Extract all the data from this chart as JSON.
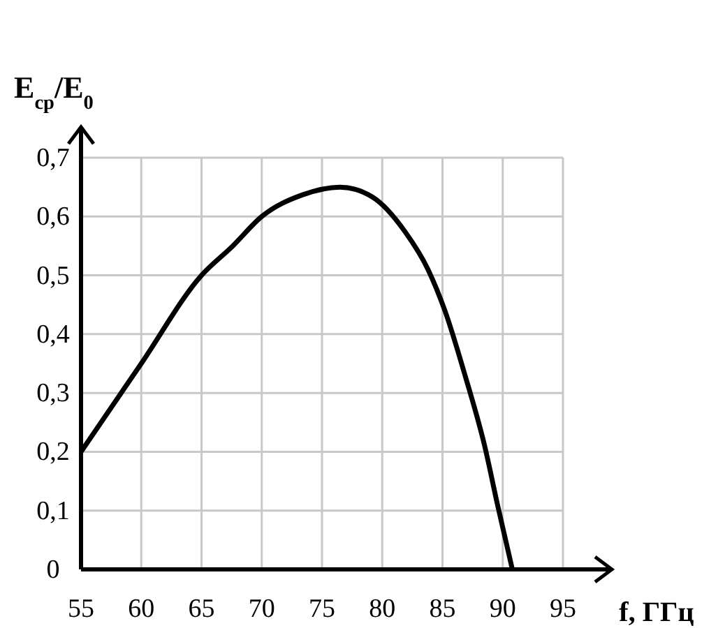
{
  "chart_data": {
    "type": "line",
    "xlabel": "f, ГГц",
    "ylabel": "E$_{ср}$/E$_{0}$",
    "xlim": [
      55,
      95
    ],
    "xticks": [
      55,
      60,
      65,
      70,
      75,
      80,
      85,
      90,
      95
    ],
    "ylim": [
      0,
      0.7
    ],
    "yticks": [
      0,
      {
        "value": 0.1,
        "label": "0,1"
      },
      {
        "value": 0.2,
        "label": "0,2"
      },
      {
        "value": 0.3,
        "label": "0,3"
      },
      {
        "value": 0.4,
        "label": "0,4"
      },
      {
        "value": 0.5,
        "label": "0,5"
      },
      {
        "value": 0.6,
        "label": "0,6"
      },
      {
        "value": 0.7,
        "label": "0,7"
      }
    ],
    "grid": true,
    "marker": "none",
    "line_style": "solid",
    "series": [
      {
        "color": "#000000",
        "x": [
          55,
          60,
          65,
          67.6,
          70,
          73.4,
          76.5,
          79.2,
          81.9,
          83.8,
          85.2,
          86.9,
          88.5,
          89.6,
          90.8
        ],
        "values": [
          0.2,
          0.35,
          0.5,
          0.55,
          0.6,
          0.637,
          0.65,
          0.633,
          0.574,
          0.51,
          0.44,
          0.328,
          0.21,
          0.107,
          0
        ]
      }
    ]
  }
}
